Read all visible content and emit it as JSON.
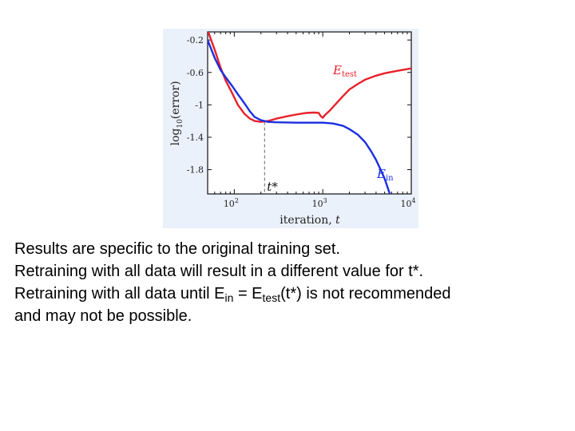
{
  "chart_data": {
    "type": "line",
    "xlabel": "iteration, t",
    "ylabel": "log10(error)",
    "xscale": "log",
    "xlim": [
      50,
      10000
    ],
    "ylim": [
      -2.1,
      -0.1
    ],
    "xticks": [
      {
        "value": 100,
        "base": "10",
        "exp": "2"
      },
      {
        "value": 1000,
        "base": "10",
        "exp": "3"
      },
      {
        "value": 10000,
        "base": "10",
        "exp": "4"
      }
    ],
    "yticks": [
      {
        "value": -0.2,
        "label": "-0.2"
      },
      {
        "value": -0.6,
        "label": "-0.6"
      },
      {
        "value": -1.0,
        "label": "-1"
      },
      {
        "value": -1.4,
        "label": "-1.4"
      },
      {
        "value": -1.8,
        "label": "-1.8"
      }
    ],
    "grid": false,
    "series": [
      {
        "name": "E",
        "sub": "test",
        "color": "#e8202a",
        "points": [
          [
            50,
            -0.08
          ],
          [
            60,
            -0.32
          ],
          [
            70,
            -0.54
          ],
          [
            80,
            -0.7
          ],
          [
            95,
            -0.86
          ],
          [
            110,
            -1.0
          ],
          [
            130,
            -1.11
          ],
          [
            150,
            -1.17
          ],
          [
            170,
            -1.2
          ],
          [
            200,
            -1.21
          ],
          [
            240,
            -1.2
          ],
          [
            300,
            -1.17
          ],
          [
            400,
            -1.14
          ],
          [
            500,
            -1.12
          ],
          [
            650,
            -1.1
          ],
          [
            800,
            -1.095
          ],
          [
            900,
            -1.1
          ],
          [
            950,
            -1.14
          ],
          [
            1000,
            -1.16
          ],
          [
            1050,
            -1.13
          ],
          [
            1200,
            -1.07
          ],
          [
            1400,
            -0.99
          ],
          [
            1700,
            -0.89
          ],
          [
            2000,
            -0.81
          ],
          [
            2500,
            -0.74
          ],
          [
            3000,
            -0.69
          ],
          [
            4000,
            -0.64
          ],
          [
            5000,
            -0.61
          ],
          [
            7000,
            -0.58
          ],
          [
            10000,
            -0.55
          ]
        ]
      },
      {
        "name": "E",
        "sub": "in",
        "color": "#1a2ee0",
        "points": [
          [
            50,
            -0.2
          ],
          [
            60,
            -0.42
          ],
          [
            70,
            -0.57
          ],
          [
            80,
            -0.66
          ],
          [
            95,
            -0.77
          ],
          [
            110,
            -0.87
          ],
          [
            130,
            -0.98
          ],
          [
            150,
            -1.08
          ],
          [
            170,
            -1.15
          ],
          [
            200,
            -1.19
          ],
          [
            240,
            -1.21
          ],
          [
            300,
            -1.215
          ],
          [
            500,
            -1.22
          ],
          [
            1000,
            -1.22
          ],
          [
            1300,
            -1.23
          ],
          [
            1700,
            -1.26
          ],
          [
            2000,
            -1.3
          ],
          [
            2500,
            -1.37
          ],
          [
            3000,
            -1.46
          ],
          [
            3500,
            -1.57
          ],
          [
            4000,
            -1.68
          ],
          [
            4500,
            -1.8
          ],
          [
            5000,
            -1.91
          ],
          [
            5800,
            -2.12
          ]
        ]
      }
    ],
    "annotations": [
      {
        "text": "t*",
        "x": 220,
        "y": -1.21,
        "style": "dashed-vertical"
      }
    ]
  },
  "caption": {
    "line1": "Results are specific to the original training set.",
    "line2": "Retraining with all data will result in a different value for t*.",
    "line3_a": "Retraining with all data until E",
    "line3_sub1": "in",
    "line3_b": " = E",
    "line3_sub2": "test",
    "line3_c": "(t*) is not recommended",
    "line4": "and may not be possible."
  }
}
